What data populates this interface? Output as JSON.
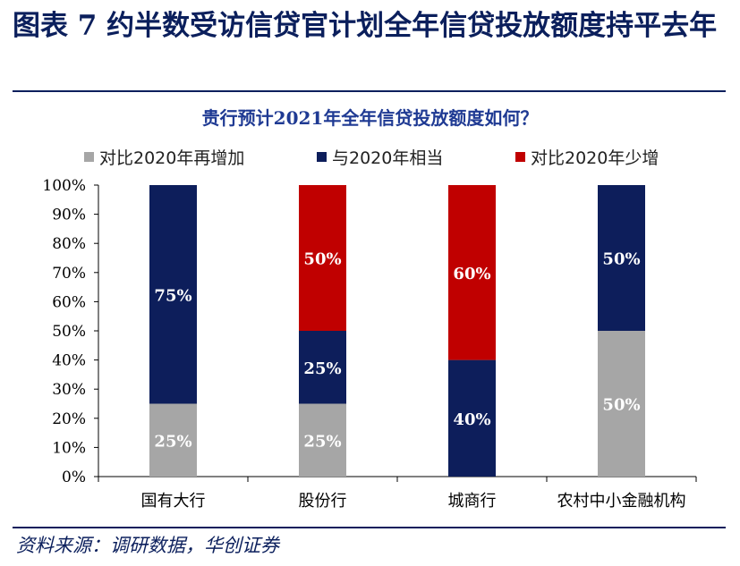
{
  "figure": {
    "title": "图表 7   约半数受访信贷官计划全年信贷投放额度持平去年",
    "source": "资料来源：调研数据，华创证券"
  },
  "chart_data": {
    "type": "bar",
    "stacked": true,
    "title": "贵行预计2021年全年信贷投放额度如何？",
    "categories": [
      "国有大行",
      "股份行",
      "城商行",
      "农村中小金融机构"
    ],
    "series": [
      {
        "name": "对比2020年再增加",
        "color": "#a6a6a6",
        "values": [
          25,
          25,
          0,
          50
        ]
      },
      {
        "name": "与2020年相当",
        "color": "#0d1e5b",
        "values": [
          75,
          25,
          40,
          50
        ]
      },
      {
        "name": "对比2020年少增",
        "color": "#c00000",
        "values": [
          0,
          50,
          60,
          0
        ]
      }
    ],
    "ylim": [
      0,
      100
    ],
    "yticks": [
      "0%",
      "10%",
      "20%",
      "30%",
      "40%",
      "50%",
      "60%",
      "70%",
      "80%",
      "90%",
      "100%"
    ],
    "legend_position": "top",
    "grid": false,
    "value_suffix": "%"
  }
}
